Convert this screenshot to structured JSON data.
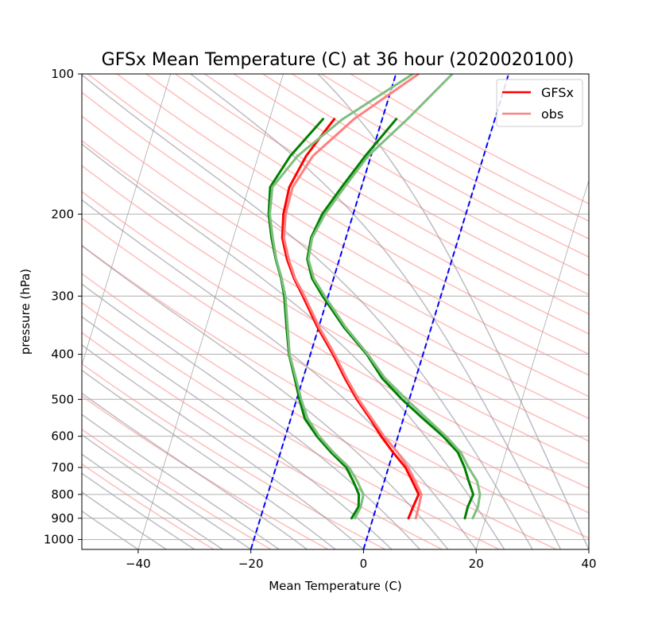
{
  "chart_data": {
    "type": "line",
    "title": "GFSx Mean Temperature (C) at 36 hour (2020020100)",
    "xlabel": "Mean Temperature (C)",
    "ylabel": "pressure (hPa)",
    "xlim": [
      -50,
      40
    ],
    "ylim": [
      1050,
      100
    ],
    "y_scale": "log",
    "grid": true,
    "legend_position": "top-right",
    "x_ticks": [
      "−40",
      "−20",
      "0",
      "20",
      "40"
    ],
    "y_ticks": [
      "100",
      "200",
      "300",
      "400",
      "500",
      "600",
      "700",
      "800",
      "900",
      "1000"
    ],
    "series": [
      {
        "name": "GFSx",
        "color": "#ff0000",
        "role": "temperature",
        "pressure": [
          900,
          850,
          800,
          750,
          700,
          650,
          600,
          550,
          500,
          450,
          400,
          350,
          300,
          275,
          250,
          225,
          200,
          175,
          150,
          135,
          125
        ],
        "values": [
          6.3,
          6.5,
          6.8,
          5.0,
          3.0,
          0.0,
          -3.0,
          -5.9,
          -9.3,
          -12.6,
          -16.0,
          -20.2,
          -24.5,
          -27.0,
          -29.3,
          -31.3,
          -32.4,
          -32.8,
          -31.5,
          -29.8,
          -28.5
        ]
      },
      {
        "name": "GFSx",
        "color": "#008000",
        "role": "dewpoint",
        "pressure": [
          900,
          850,
          800,
          750,
          700,
          650,
          600,
          550,
          500,
          450,
          400,
          350,
          300,
          275,
          250,
          225,
          200,
          175,
          150,
          125
        ],
        "values": [
          -3.8,
          -3.2,
          -3.8,
          -5.5,
          -7.5,
          -11.0,
          -14.4,
          -17.5,
          -19.5,
          -21.5,
          -23.8,
          -25.7,
          -27.8,
          -29.3,
          -31.3,
          -33.2,
          -35.0,
          -36.2,
          -34.3,
          -30.5
        ]
      },
      {
        "name": "GFSx",
        "color": "#008000",
        "role": "dewpoint",
        "pressure": [
          900,
          850,
          800,
          750,
          700,
          650,
          600,
          550,
          500,
          450,
          400,
          350,
          300,
          275,
          250,
          225,
          200,
          175,
          150,
          125
        ],
        "values": [
          16.3,
          16.2,
          16.5,
          15.0,
          13.5,
          11.5,
          8.0,
          3.5,
          -1.3,
          -6.0,
          -10.0,
          -15.5,
          -21.0,
          -23.8,
          -25.7,
          -26.2,
          -25.5,
          -23.5,
          -21.0,
          -17.5
        ]
      },
      {
        "name": "obs",
        "color": "#ff8080",
        "pressure": [
          900,
          850,
          800,
          750,
          700,
          650,
          600,
          550,
          500,
          450,
          400,
          350,
          300,
          275,
          250,
          225,
          200,
          175,
          150,
          125,
          100
        ],
        "values": [
          7.6,
          7.5,
          7.3,
          5.5,
          3.5,
          0.8,
          -2.5,
          -5.6,
          -9.0,
          -12.3,
          -15.7,
          -19.9,
          -24.2,
          -26.8,
          -29.0,
          -31.0,
          -32.0,
          -32.2,
          -30.3,
          -25.0,
          -16.0
        ]
      },
      {
        "name": "obs",
        "color": "#7fbf7f",
        "role": "dewpoint",
        "pressure": [
          900,
          850,
          800,
          750,
          700,
          650,
          600,
          550,
          500,
          450,
          400,
          350,
          300,
          275,
          250,
          225,
          200,
          175,
          150,
          125,
          100
        ],
        "values": [
          -3.2,
          -2.8,
          -3.0,
          -4.8,
          -7.0,
          -10.6,
          -14.0,
          -17.0,
          -19.2,
          -21.3,
          -23.7,
          -25.5,
          -27.6,
          -29.2,
          -31.2,
          -33.0,
          -34.8,
          -35.8,
          -33.0,
          -27.0,
          -17.0
        ]
      },
      {
        "name": "obs",
        "color": "#7fbf7f",
        "role": "dewpoint",
        "pressure": [
          900,
          850,
          800,
          750,
          700,
          650,
          600,
          550,
          500,
          450,
          400,
          350,
          300,
          275,
          250,
          225,
          200,
          175,
          150,
          125,
          100
        ],
        "values": [
          17.7,
          18.0,
          17.7,
          16.5,
          14.2,
          12.0,
          8.5,
          4.2,
          -0.5,
          -5.5,
          -9.8,
          -15.2,
          -20.6,
          -23.5,
          -25.5,
          -26.0,
          -25.0,
          -23.0,
          -20.5,
          -15.5,
          -10.0
        ]
      },
      {
        "color": "#0000ff",
        "role": "reference",
        "style": "dashed",
        "pressure": [
          1050,
          100
        ],
        "values": [
          -20,
          -20
        ]
      },
      {
        "color": "#0000ff",
        "role": "reference",
        "style": "dashed",
        "pressure": [
          1050,
          100
        ],
        "values": [
          0,
          0
        ]
      }
    ],
    "legend": [
      {
        "label": "GFSx",
        "color": "#ff0000"
      },
      {
        "label": "obs",
        "color": "#ff8080"
      }
    ],
    "background_colors": {
      "isotherm": "#a9a9a9",
      "dry_adiabat": "#ff8c8c",
      "moist_adiabat": "#8c8c96",
      "grid": "#b0b0b0"
    }
  }
}
